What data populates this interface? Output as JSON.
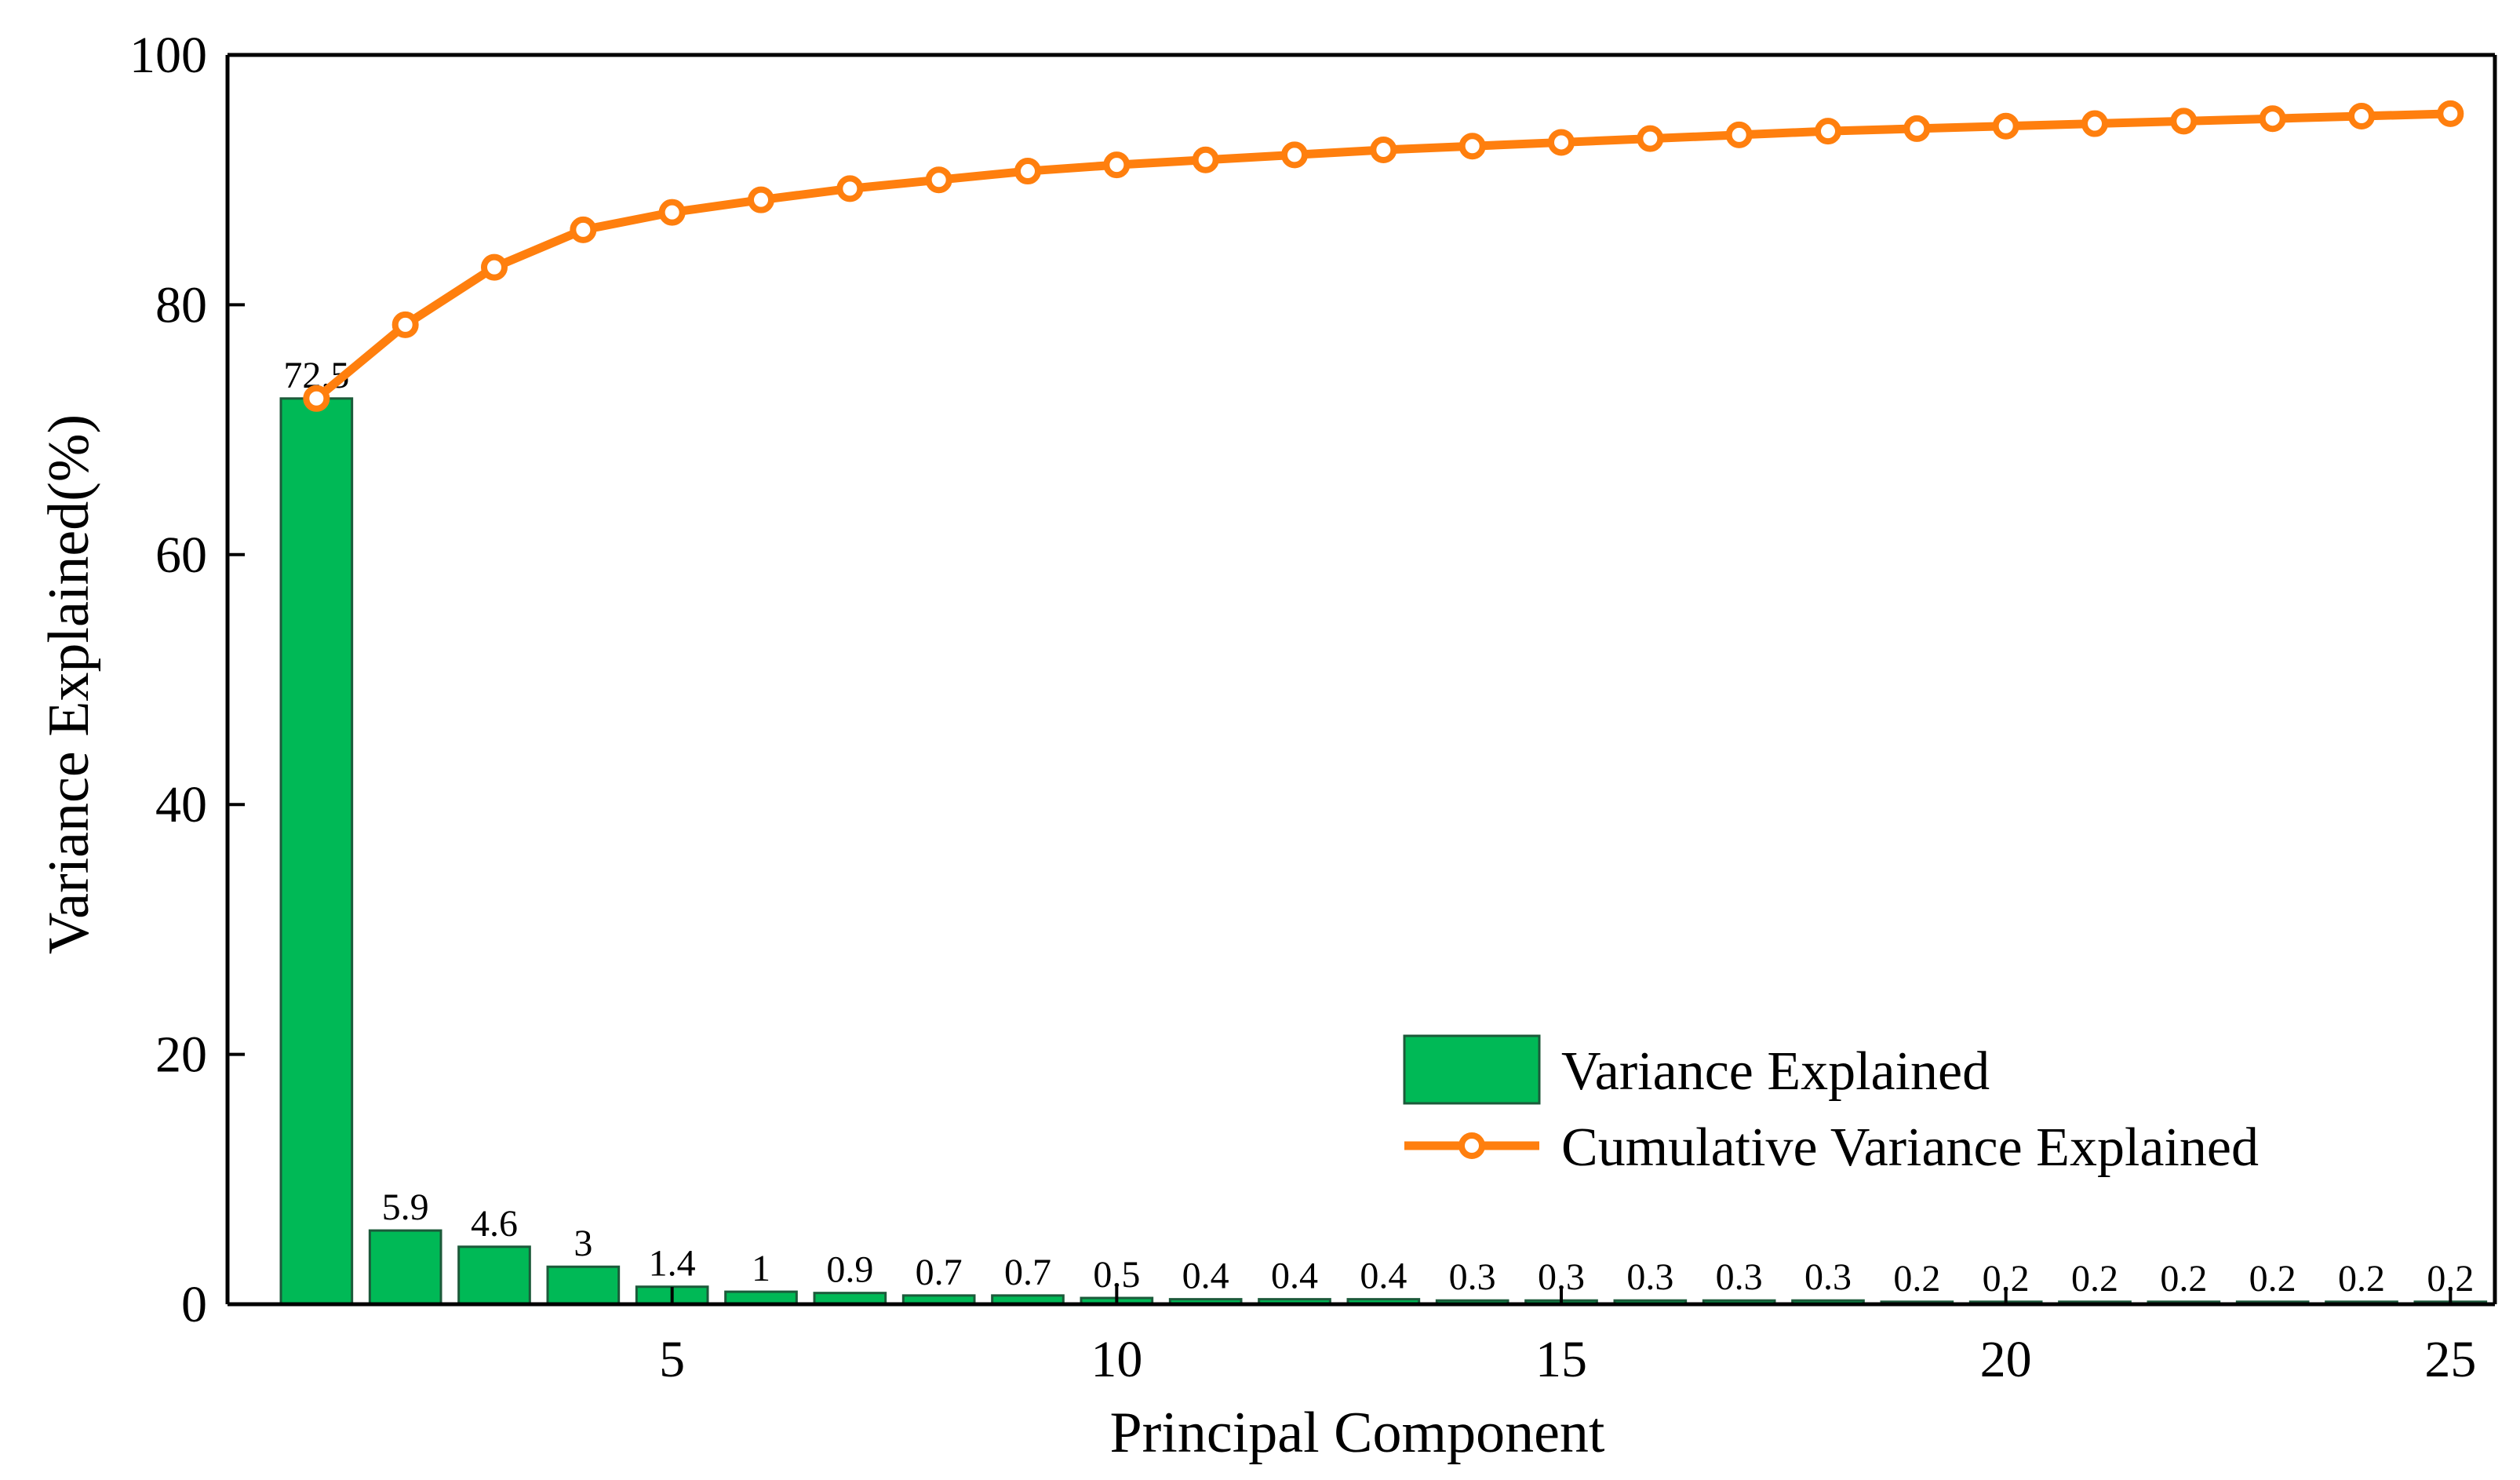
{
  "chart_data": {
    "type": "bar+line",
    "title": "",
    "xlabel": "Principal Component",
    "ylabel": "Variance Explained(%)",
    "xlim": [
      0,
      25.5
    ],
    "ylim": [
      0,
      100
    ],
    "x_ticks": [
      5,
      10,
      15,
      20,
      25
    ],
    "y_ticks": [
      0,
      20,
      40,
      60,
      80,
      100
    ],
    "grid": false,
    "legend_position": "bottom-right",
    "x": [
      1,
      2,
      3,
      4,
      5,
      6,
      7,
      8,
      9,
      10,
      11,
      12,
      13,
      14,
      15,
      16,
      17,
      18,
      19,
      20,
      21,
      22,
      23,
      24,
      25
    ],
    "series": [
      {
        "name": "Variance Explained",
        "type": "bar",
        "color": "#00B956",
        "edge_color": "#1C5A3A",
        "values": [
          72.5,
          5.9,
          4.6,
          3,
          1.4,
          1,
          0.9,
          0.7,
          0.7,
          0.5,
          0.4,
          0.4,
          0.4,
          0.3,
          0.3,
          0.3,
          0.3,
          0.3,
          0.2,
          0.2,
          0.2,
          0.2,
          0.2,
          0.2,
          0.2
        ],
        "labels": [
          "72.5",
          "5.9",
          "4.6",
          "3",
          "1.4",
          "1",
          "0.9",
          "0.7",
          "0.7",
          "0.5",
          "0.4",
          "0.4",
          "0.4",
          "0.3",
          "0.3",
          "0.3",
          "0.3",
          "0.3",
          "0.2",
          "0.2",
          "0.2",
          "0.2",
          "0.2",
          "0.2",
          "0.2"
        ]
      },
      {
        "name": "Cumulative Variance Explained",
        "type": "line",
        "color": "#FF7F0E",
        "marker": "circle",
        "values": [
          72.5,
          78.4,
          83.0,
          86.0,
          87.4,
          88.4,
          89.3,
          90.0,
          90.7,
          91.2,
          91.6,
          92.0,
          92.4,
          92.7,
          93.0,
          93.3,
          93.6,
          93.9,
          94.1,
          94.3,
          94.5,
          94.7,
          94.9,
          95.1,
          95.3
        ]
      }
    ]
  }
}
